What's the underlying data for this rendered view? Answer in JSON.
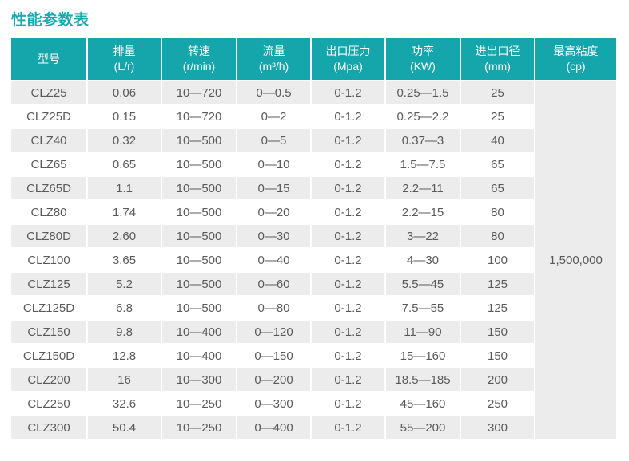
{
  "title": "性能参数表",
  "colors": {
    "header_bg": "#15a6ac",
    "title_text": "#15abb1",
    "row_alt_bg": "#ececec",
    "merged_cell_bg": "#f0f0f0",
    "body_text": "#5a5a5c",
    "header_text": "#ffffff"
  },
  "table": {
    "columns": [
      {
        "key": "model",
        "title": "型号",
        "unit": ""
      },
      {
        "key": "displacement",
        "title": "排量",
        "unit": "(L/r)"
      },
      {
        "key": "speed",
        "title": "转速",
        "unit": "(r/min)"
      },
      {
        "key": "flow",
        "title": "流量",
        "unit": "(m³/h)"
      },
      {
        "key": "pressure",
        "title": "出口压力",
        "unit": "(Mpa)"
      },
      {
        "key": "power",
        "title": "功率",
        "unit": "(KW)"
      },
      {
        "key": "diameter",
        "title": "进出口径",
        "unit": "(mm)"
      },
      {
        "key": "viscosity",
        "title": "最高粘度",
        "unit": "(cp)"
      }
    ],
    "rows": [
      {
        "model": "CLZ25",
        "displacement": "0.06",
        "speed": "10—720",
        "flow": "0—0.5",
        "pressure": "0-1.2",
        "power": "0.25—1.5",
        "diameter": "25"
      },
      {
        "model": "CLZ25D",
        "displacement": "0.15",
        "speed": "10—720",
        "flow": "0—2",
        "pressure": "0-1.2",
        "power": "0.25—2.2",
        "diameter": "25"
      },
      {
        "model": "CLZ40",
        "displacement": "0.32",
        "speed": "10—500",
        "flow": "0—5",
        "pressure": "0-1.2",
        "power": "0.37—3",
        "diameter": "40"
      },
      {
        "model": "CLZ65",
        "displacement": "0.65",
        "speed": "10—500",
        "flow": "0—10",
        "pressure": "0-1.2",
        "power": "1.5—7.5",
        "diameter": "65"
      },
      {
        "model": "CLZ65D",
        "displacement": "1.1",
        "speed": "10—500",
        "flow": "0—15",
        "pressure": "0-1.2",
        "power": "2.2—11",
        "diameter": "65"
      },
      {
        "model": "CLZ80",
        "displacement": "1.74",
        "speed": "10—500",
        "flow": "0—20",
        "pressure": "0-1.2",
        "power": "2.2—15",
        "diameter": "80"
      },
      {
        "model": "CLZ80D",
        "displacement": "2.60",
        "speed": "10—500",
        "flow": "0—30",
        "pressure": "0-1.2",
        "power": "3—22",
        "diameter": "80"
      },
      {
        "model": "CLZ100",
        "displacement": "3.65",
        "speed": "10—500",
        "flow": "0—40",
        "pressure": "0-1.2",
        "power": "4—30",
        "diameter": "100"
      },
      {
        "model": "CLZ125",
        "displacement": "5.2",
        "speed": "10—500",
        "flow": "0—60",
        "pressure": "0-1.2",
        "power": "5.5—45",
        "diameter": "125"
      },
      {
        "model": "CLZ125D",
        "displacement": "6.8",
        "speed": "10—500",
        "flow": "0—80",
        "pressure": "0-1.2",
        "power": "7.5—55",
        "diameter": "125"
      },
      {
        "model": "CLZ150",
        "displacement": "9.8",
        "speed": "10—400",
        "flow": "0—120",
        "pressure": "0-1.2",
        "power": "11—90",
        "diameter": "150"
      },
      {
        "model": "CLZ150D",
        "displacement": "12.8",
        "speed": "10—400",
        "flow": "0—150",
        "pressure": "0-1.2",
        "power": "15—160",
        "diameter": "150"
      },
      {
        "model": "CLZ200",
        "displacement": "16",
        "speed": "10—300",
        "flow": "0—200",
        "pressure": "0-1.2",
        "power": "18.5—185",
        "diameter": "200"
      },
      {
        "model": "CLZ250",
        "displacement": "32.6",
        "speed": "10—250",
        "flow": "0—300",
        "pressure": "0-1.2",
        "power": "45—160",
        "diameter": "250"
      },
      {
        "model": "CLZ300",
        "displacement": "50.4",
        "speed": "10—250",
        "flow": "0—400",
        "pressure": "0-1.2",
        "power": "55—200",
        "diameter": "300"
      }
    ],
    "merged_viscosity_value": "1,500,000"
  }
}
